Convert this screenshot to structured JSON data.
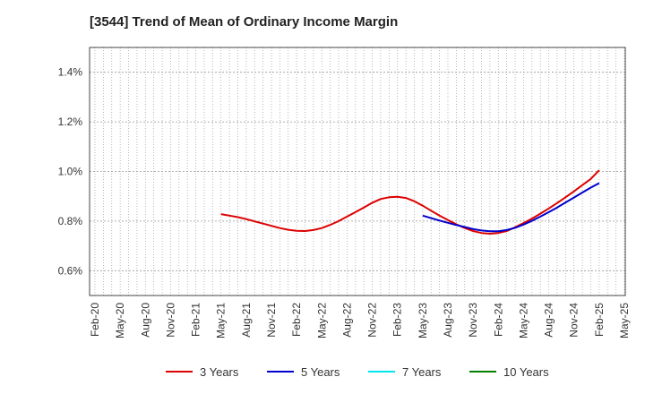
{
  "title": "[3544]  Trend of Mean of Ordinary Income Margin",
  "chart_data": {
    "type": "line",
    "title": "[3544]  Trend of Mean of Ordinary Income Margin",
    "xlabel": "",
    "ylabel": "",
    "x_ticks": [
      "Feb-20",
      "May-20",
      "Aug-20",
      "Nov-20",
      "Feb-21",
      "May-21",
      "Aug-21",
      "Nov-21",
      "Feb-22",
      "May-22",
      "Aug-22",
      "Nov-22",
      "Feb-23",
      "May-23",
      "Aug-23",
      "Nov-23",
      "Feb-24",
      "May-24",
      "Aug-24",
      "Nov-24",
      "Feb-25",
      "May-25"
    ],
    "y_ticks": [
      "0.6%",
      "0.8%",
      "1.0%",
      "1.2%",
      "1.4%"
    ],
    "y_tick_values": [
      0.6,
      0.8,
      1.0,
      1.2,
      1.4
    ],
    "ylim": [
      0.5,
      1.5
    ],
    "grid": true,
    "legend_position": "bottom",
    "series": [
      {
        "name": "3 Years",
        "color": "#dd0000",
        "points": [
          [
            "May-21",
            0.828
          ],
          [
            "Jun-21",
            0.822
          ],
          [
            "Jul-21",
            0.816
          ],
          [
            "Aug-21",
            0.808
          ],
          [
            "Sep-21",
            0.799
          ],
          [
            "Oct-21",
            0.79
          ],
          [
            "Nov-21",
            0.781
          ],
          [
            "Dec-21",
            0.772
          ],
          [
            "Jan-22",
            0.765
          ],
          [
            "Feb-22",
            0.761
          ],
          [
            "Mar-22",
            0.76
          ],
          [
            "Apr-22",
            0.764
          ],
          [
            "May-22",
            0.772
          ],
          [
            "Jun-22",
            0.785
          ],
          [
            "Jul-22",
            0.8
          ],
          [
            "Aug-22",
            0.818
          ],
          [
            "Sep-22",
            0.836
          ],
          [
            "Oct-22",
            0.855
          ],
          [
            "Nov-22",
            0.874
          ],
          [
            "Dec-22",
            0.889
          ],
          [
            "Jan-23",
            0.896
          ],
          [
            "Feb-23",
            0.898
          ],
          [
            "Mar-23",
            0.893
          ],
          [
            "Apr-23",
            0.88
          ],
          [
            "May-23",
            0.862
          ],
          [
            "Jun-23",
            0.842
          ],
          [
            "Jul-23",
            0.822
          ],
          [
            "Aug-23",
            0.804
          ],
          [
            "Sep-23",
            0.787
          ],
          [
            "Oct-23",
            0.772
          ],
          [
            "Nov-23",
            0.76
          ],
          [
            "Dec-23",
            0.752
          ],
          [
            "Jan-24",
            0.749
          ],
          [
            "Feb-24",
            0.752
          ],
          [
            "Mar-24",
            0.76
          ],
          [
            "Apr-24",
            0.775
          ],
          [
            "May-24",
            0.792
          ],
          [
            "Jun-24",
            0.81
          ],
          [
            "Jul-24",
            0.83
          ],
          [
            "Aug-24",
            0.851
          ],
          [
            "Sep-24",
            0.873
          ],
          [
            "Oct-24",
            0.896
          ],
          [
            "Nov-24",
            0.92
          ],
          [
            "Dec-24",
            0.945
          ],
          [
            "Jan-25",
            0.97
          ],
          [
            "Feb-25",
            1.005
          ]
        ]
      },
      {
        "name": "5 Years",
        "color": "#0000cc",
        "points": [
          [
            "May-23",
            0.822
          ],
          [
            "Jun-23",
            0.812
          ],
          [
            "Jul-23",
            0.802
          ],
          [
            "Aug-23",
            0.793
          ],
          [
            "Sep-23",
            0.784
          ],
          [
            "Oct-23",
            0.776
          ],
          [
            "Nov-23",
            0.768
          ],
          [
            "Dec-23",
            0.762
          ],
          [
            "Jan-24",
            0.759
          ],
          [
            "Feb-24",
            0.759
          ],
          [
            "Mar-24",
            0.764
          ],
          [
            "Apr-24",
            0.773
          ],
          [
            "May-24",
            0.786
          ],
          [
            "Jun-24",
            0.801
          ],
          [
            "Jul-24",
            0.818
          ],
          [
            "Aug-24",
            0.836
          ],
          [
            "Sep-24",
            0.855
          ],
          [
            "Oct-24",
            0.875
          ],
          [
            "Nov-24",
            0.895
          ],
          [
            "Dec-24",
            0.915
          ],
          [
            "Jan-25",
            0.935
          ],
          [
            "Feb-25",
            0.953
          ]
        ]
      },
      {
        "name": "7 Years",
        "color": "#00e5ee",
        "points": []
      },
      {
        "name": "10 Years",
        "color": "#008000",
        "points": []
      }
    ]
  }
}
